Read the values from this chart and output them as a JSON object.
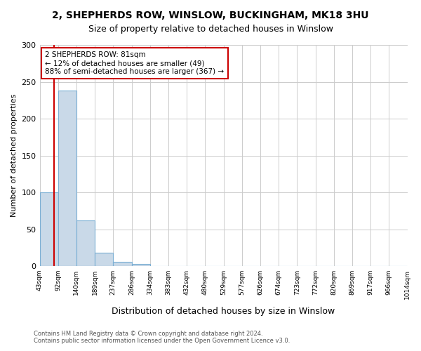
{
  "title_line1": "2, SHEPHERDS ROW, WINSLOW, BUCKINGHAM, MK18 3HU",
  "title_line2": "Size of property relative to detached houses in Winslow",
  "xlabel": "Distribution of detached houses by size in Winslow",
  "ylabel": "Number of detached properties",
  "footnote": "Contains HM Land Registry data © Crown copyright and database right 2024.\nContains public sector information licensed under the Open Government Licence v3.0.",
  "bin_labels": [
    "43sqm",
    "92sqm",
    "140sqm",
    "189sqm",
    "237sqm",
    "286sqm",
    "334sqm",
    "383sqm",
    "432sqm",
    "480sqm",
    "529sqm",
    "577sqm",
    "626sqm",
    "674sqm",
    "723sqm",
    "772sqm",
    "820sqm",
    "869sqm",
    "917sqm",
    "966sqm",
    "1014sqm"
  ],
  "bar_values": [
    100,
    238,
    62,
    18,
    6,
    3,
    0,
    0,
    0,
    0,
    0,
    0,
    0,
    0,
    0,
    0,
    0,
    0,
    0,
    0
  ],
  "bar_color": "#c9d9e8",
  "bar_edge_color": "#7bafd4",
  "ylim": [
    0,
    300
  ],
  "yticks": [
    0,
    50,
    100,
    150,
    200,
    250,
    300
  ],
  "property_size_sqm": 81,
  "property_line_color": "#cc0000",
  "annotation_text": "2 SHEPHERDS ROW: 81sqm\n← 12% of detached houses are smaller (49)\n88% of semi-detached houses are larger (367) →",
  "annotation_box_color": "#cc0000",
  "bin_edges": [
    43,
    92,
    140,
    189,
    237,
    286,
    334,
    383,
    432,
    480,
    529,
    577,
    626,
    674,
    723,
    772,
    820,
    869,
    917,
    966,
    1014
  ]
}
